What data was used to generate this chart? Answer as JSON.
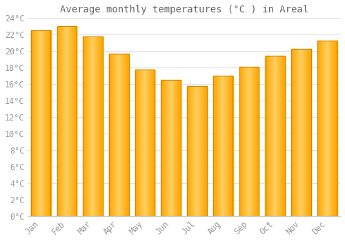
{
  "title": "Average monthly temperatures (°C ) in Areal",
  "months": [
    "Jan",
    "Feb",
    "Mar",
    "Apr",
    "May",
    "Jun",
    "Jul",
    "Aug",
    "Sep",
    "Oct",
    "Nov",
    "Dec"
  ],
  "values": [
    22.5,
    23.0,
    21.8,
    19.7,
    17.8,
    16.5,
    15.8,
    17.0,
    18.1,
    19.4,
    20.3,
    21.3
  ],
  "bar_color_center": "#FFD060",
  "bar_color_edge": "#FFA500",
  "bar_edge_color": "#CC8800",
  "ylim": [
    0,
    24
  ],
  "ytick_step": 2,
  "background_color": "#FFFFFF",
  "grid_color": "#E0E0E0",
  "title_fontsize": 10,
  "tick_fontsize": 8.5,
  "tick_label_color": "#999999",
  "title_color": "#666666",
  "bar_width": 0.75
}
